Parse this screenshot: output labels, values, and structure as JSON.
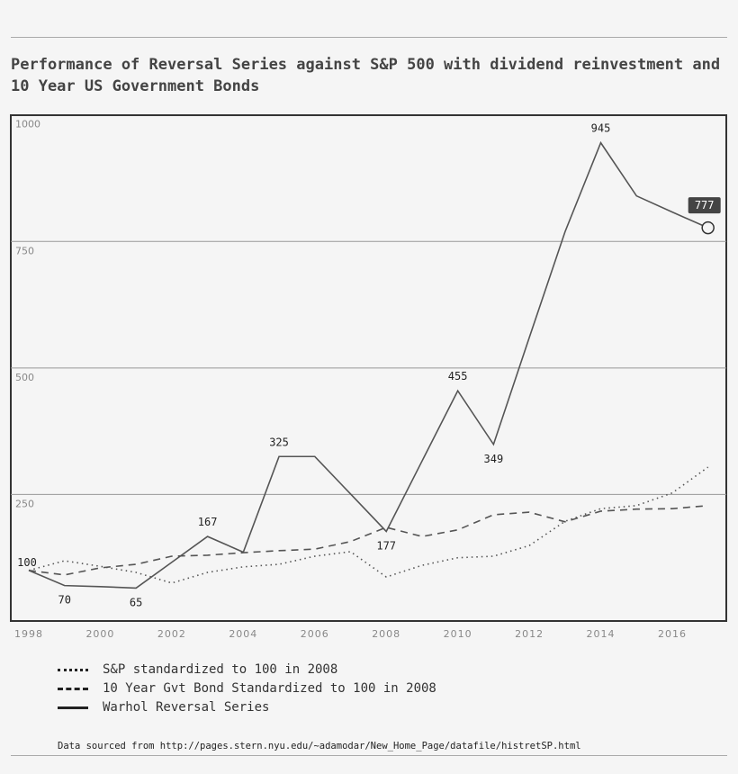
{
  "title": "Performance of Reversal Series against S&P 500 with dividend reinvestment and 10 Year US Government Bonds",
  "chart_data": {
    "type": "line",
    "title": "Performance of Reversal Series against S&P 500 with dividend reinvestment and 10 Year US Government Bonds",
    "x": [
      1998,
      1999,
      2000,
      2001,
      2002,
      2003,
      2004,
      2005,
      2006,
      2007,
      2008,
      2009,
      2010,
      2011,
      2012,
      2013,
      2014,
      2015,
      2016,
      2017
    ],
    "xticks": [
      "1998",
      "2000",
      "2002",
      "2004",
      "2006",
      "2008",
      "2010",
      "2012",
      "2014",
      "2016"
    ],
    "yticks": [
      "250",
      "500",
      "750",
      "1000"
    ],
    "ylim": [
      0,
      1000
    ],
    "grid": "horizontal",
    "legend_position": "bottom",
    "series": [
      {
        "name": "S&P standardized to 100 in 2008",
        "style": "dotted",
        "values": [
          100,
          119,
          108,
          96,
          75,
          96,
          107,
          112,
          128,
          137,
          87,
          110,
          125,
          128,
          149,
          197,
          222,
          228,
          253,
          304
        ]
      },
      {
        "name": "10 Year Gvt Bond Standardized to 100 in 2008",
        "style": "dashed",
        "values": [
          100,
          91,
          105,
          112,
          128,
          130,
          135,
          139,
          142,
          157,
          185,
          167,
          180,
          210,
          215,
          196,
          217,
          221,
          222,
          228
        ]
      },
      {
        "name": "Warhol Reversal Series",
        "style": "solid",
        "values": [
          100,
          70,
          68,
          65,
          116,
          167,
          136,
          325,
          325,
          251,
          177,
          316,
          455,
          349,
          560,
          769,
          945,
          840,
          808,
          777
        ]
      }
    ],
    "annotations": [
      {
        "x": 1998,
        "text": "100",
        "pos": "left"
      },
      {
        "x": 1999,
        "text": "70",
        "pos": "below"
      },
      {
        "x": 2001,
        "text": "65",
        "pos": "below"
      },
      {
        "x": 2003,
        "text": "167",
        "pos": "above"
      },
      {
        "x": 2005,
        "text": "325",
        "pos": "above"
      },
      {
        "x": 2008,
        "text": "177",
        "pos": "below"
      },
      {
        "x": 2010,
        "text": "455",
        "pos": "above"
      },
      {
        "x": 2011,
        "text": "349",
        "pos": "below"
      },
      {
        "x": 2014,
        "text": "945",
        "pos": "above"
      }
    ],
    "tooltip": {
      "x": 2017,
      "text": "777"
    }
  },
  "source": "Data sourced from http://pages.stern.nyu.edu/~adamodar/New_Home_Page/datafile/histretSP.html",
  "colors": {
    "line": "#555555",
    "frame": "#333333",
    "grid": "#999999",
    "tooltip": "#444444"
  }
}
